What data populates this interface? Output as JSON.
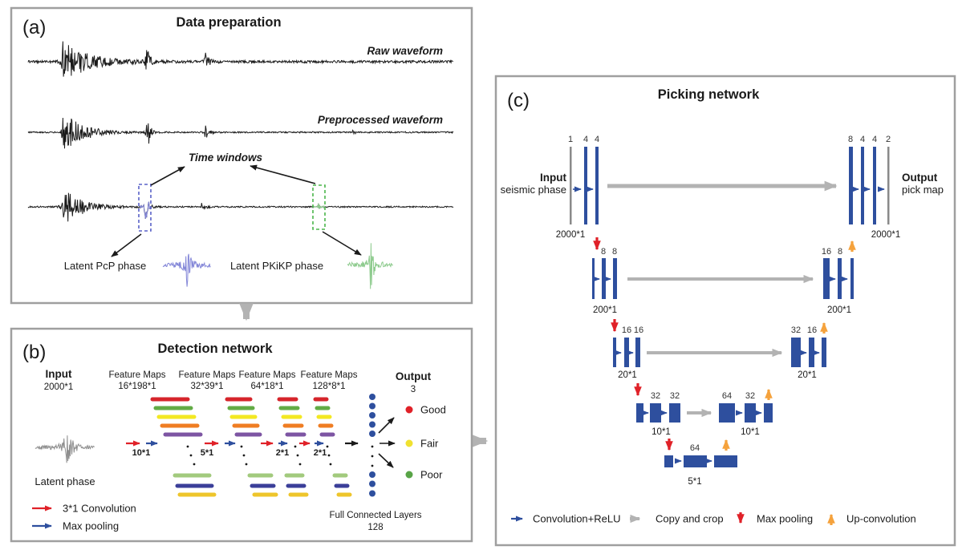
{
  "colors": {
    "panel_border": "#9f9f9f",
    "ink": "#1a1a1a",
    "blue": "#2e4f9e",
    "arrow_red": "#e02128",
    "arrow_orange": "#f5a23c",
    "arrow_gray": "#b3b3b3",
    "fm_red": "#d6252b",
    "fm_green": "#62ab45",
    "fm_yellow": "#f3e822",
    "fm_orange": "#ef7d23",
    "fm_purple": "#7d55a3",
    "fm_lgreen": "#a2ca7d",
    "fm_navy": "#3b3f99",
    "fm_gold": "#eec52b",
    "good": "#e02128",
    "fair": "#f0e130",
    "poor": "#58a447",
    "wave_pcp": "#8487d8",
    "wave_pkikp": "#8ecb8e",
    "wave_gray": "#8f8f8f",
    "box_blue": "#5a62c8",
    "box_green": "#4bb54b"
  },
  "panel_a": {
    "tag": "(a)",
    "title": "Data preparation",
    "raw_label": "Raw waveform",
    "preprocessed_label": "Preprocessed waveform",
    "time_windows_label": "Time windows",
    "latent_pcp_label": "Latent PcP phase",
    "latent_pkikp_label": "Latent PKiKP phase"
  },
  "panel_b": {
    "tag": "(b)",
    "title": "Detection network",
    "input_title": "Input",
    "input_dim": "2000*1",
    "feature_maps": [
      {
        "title": "Feature Maps",
        "dim": "16*198*1"
      },
      {
        "title": "Feature Maps",
        "dim": "32*39*1"
      },
      {
        "title": "Feature Maps",
        "dim": "64*18*1"
      },
      {
        "title": "Feature Maps",
        "dim": "128*8*1"
      }
    ],
    "pool_labels": [
      "10*1",
      "5*1",
      "2*1",
      "2*1"
    ],
    "output_title": "Output",
    "output_dim": "3",
    "classes": [
      {
        "label": "Good"
      },
      {
        "label": "Fair"
      },
      {
        "label": "Poor"
      }
    ],
    "fc_line1": "Full Connected Layers",
    "fc_line2": "128",
    "latent_label": "Latent phase",
    "legend": [
      {
        "label": "3*1 Convolution"
      },
      {
        "label": "Max pooling"
      }
    ]
  },
  "panel_c": {
    "tag": "(c)",
    "title": "Picking network",
    "input_title": "Input",
    "input_sub": "seismic phase",
    "output_title": "Output",
    "output_sub": "pick map",
    "enc": {
      "l1_ch": [
        "1",
        "4",
        "4"
      ],
      "l1_dim": "2000*1",
      "l2_ch": [
        "8",
        "8"
      ],
      "l2_dim": "200*1",
      "l3_ch": [
        "16",
        "16"
      ],
      "l3_dim": "20*1",
      "l4_ch": [
        "32",
        "32"
      ],
      "l4_dim": "10*1",
      "l5_ch": "64",
      "l5_dim": "5*1"
    },
    "dec": {
      "l1_ch": [
        "8",
        "4",
        "4",
        "2"
      ],
      "l1_dim": "2000*1",
      "l2_ch": [
        "16",
        "8"
      ],
      "l2_dim": "200*1",
      "l3_ch": [
        "32",
        "16"
      ],
      "l3_dim": "20*1",
      "l4_ch": [
        "64",
        "32"
      ],
      "l4_dim": "10*1"
    },
    "legend": [
      {
        "label": "Convolution+ReLU"
      },
      {
        "label": "Copy and crop"
      },
      {
        "label": "Max pooling"
      },
      {
        "label": "Up-convolution"
      }
    ]
  }
}
